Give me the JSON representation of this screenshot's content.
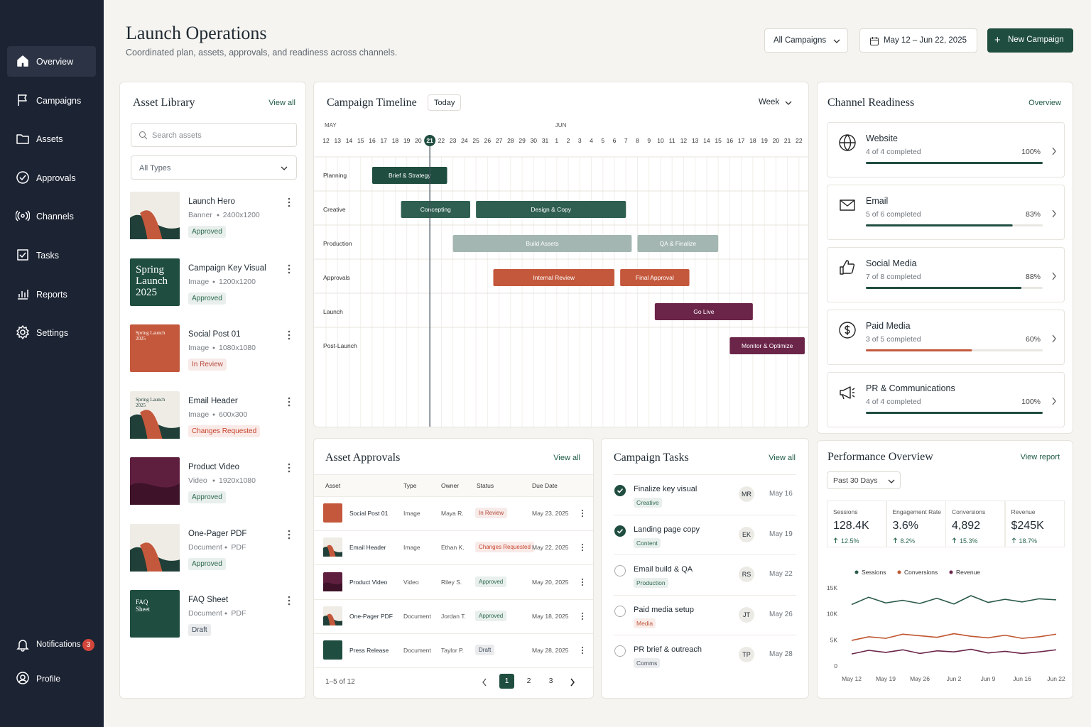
{
  "sidebar": {
    "nav": [
      "Overview",
      "Campaigns",
      "Assets",
      "Approvals",
      "Channels",
      "Tasks",
      "Reports",
      "Settings"
    ],
    "notifications": {
      "label": "Notifications",
      "count": 3
    },
    "profile": "Profile"
  },
  "header": {
    "title": "Launch Operations",
    "subtitle": "Coordinated plan, assets, approvals, and readiness across channels.",
    "filter": "All Campaigns",
    "date_range": "May 12 – Jun 22, 2025",
    "button": "New Campaign"
  },
  "asset_library": {
    "title": "Asset Library",
    "view_all": "View all",
    "search": "Search assets",
    "type_filter": "All Types",
    "items": [
      {
        "name": "Launch Hero",
        "type": "Banner",
        "size": "2400x1200",
        "status": "Approved",
        "status_color": "#2d6a4f"
      },
      {
        "name": "Campaign Key Visual",
        "type": "Image",
        "size": "1200x1200",
        "status": "Approved",
        "status_color": "#2d6a4f",
        "thumb_text": [
          "Spring",
          "Launch",
          "2025"
        ]
      },
      {
        "name": "Social Post 01",
        "type": "Image",
        "size": "1080x1080",
        "status": "In Review",
        "status_color": "#b5483a",
        "thumb_text": [
          "Spring Launch",
          "2025"
        ]
      },
      {
        "name": "Email Header",
        "type": "Image",
        "size": "600x300",
        "status": "Changes Requested",
        "status_color": "#c8442c",
        "thumb_text": [
          "Spring Launch",
          "2025"
        ]
      },
      {
        "name": "Product Video",
        "type": "Video",
        "size": "1920x1080",
        "status": "Approved",
        "status_color": "#2d6a4f"
      },
      {
        "name": "One-Pager PDF",
        "type": "Document",
        "size": "PDF",
        "status": "Approved",
        "status_color": "#2d6a4f"
      },
      {
        "name": "FAQ Sheet",
        "type": "Document",
        "size": "PDF",
        "status": "Draft",
        "status_color": "#3d4b5c",
        "thumb_text": [
          "FAQ",
          "Sheet"
        ]
      }
    ]
  },
  "timeline": {
    "title": "Campaign Timeline",
    "today_button": "Today",
    "scale": "Week",
    "months": [
      {
        "name": "MAY",
        "days": [
          12,
          13,
          14,
          15,
          16,
          17,
          18,
          19,
          20,
          21,
          22,
          23,
          24,
          25,
          26,
          27,
          28,
          29,
          30,
          31
        ]
      },
      {
        "name": "JUN",
        "days": [
          1,
          2,
          3,
          4,
          5,
          6,
          7,
          8,
          9,
          10,
          11,
          12,
          13,
          14,
          15,
          16,
          17,
          18,
          19,
          20,
          21,
          22
        ]
      }
    ],
    "today": {
      "month": "MAY",
      "day": 21
    },
    "rows": [
      {
        "name": "Planning",
        "bars": [
          {
            "label": "Brief & Strategy",
            "start": 4,
            "end": 10.5,
            "color": "#1f4d40"
          }
        ]
      },
      {
        "name": "Creative",
        "bars": [
          {
            "label": "Concepting",
            "start": 6.5,
            "end": 12.5,
            "color": "#2f5f50"
          },
          {
            "label": "Design & Copy",
            "start": 13,
            "end": 26,
            "color": "#2f5f50"
          }
        ]
      },
      {
        "name": "Production",
        "bars": [
          {
            "label": "Build Assets",
            "start": 11,
            "end": 26.5,
            "color": "#a3b6b1"
          },
          {
            "label": "QA & Finalize",
            "start": 27,
            "end": 34,
            "color": "#a3b6b1"
          }
        ]
      },
      {
        "name": "Approvals",
        "bars": [
          {
            "label": "Internal Review",
            "start": 14.5,
            "end": 25,
            "color": "#c4583c"
          },
          {
            "label": "Final Approval",
            "start": 25.5,
            "end": 31.5,
            "color": "#c4583c"
          }
        ]
      },
      {
        "name": "Launch",
        "bars": [
          {
            "label": "Go Live",
            "start": 28.5,
            "end": 37,
            "color": "#6b2549"
          }
        ]
      },
      {
        "name": "Post-Launch",
        "bars": [
          {
            "label": "Monitor & Optimize",
            "start": 35,
            "end": 41.5,
            "color": "#6b2549"
          }
        ]
      }
    ]
  },
  "channel_readiness": {
    "title": "Channel Readiness",
    "link": "Overview",
    "items": [
      {
        "name": "Website",
        "progress": "4 of 4 completed",
        "percent": 100,
        "percent_label": "100%",
        "color": "#1f4d40"
      },
      {
        "name": "Email",
        "progress": "5 of 6 completed",
        "percent": 83,
        "percent_label": "83%",
        "color": "#1f4d40"
      },
      {
        "name": "Social Media",
        "progress": "7 of 8 completed",
        "percent": 88,
        "percent_label": "88%",
        "color": "#1f4d40"
      },
      {
        "name": "Paid Media",
        "progress": "3 of 5 completed",
        "percent": 60,
        "percent_label": "60%",
        "color": "#c4583c"
      },
      {
        "name": "PR & Communications",
        "progress": "4 of 4 completed",
        "percent": 100,
        "percent_label": "100%",
        "color": "#1f4d40"
      }
    ]
  },
  "asset_approvals": {
    "title": "Asset Approvals",
    "view_all": "View all",
    "columns": [
      "Asset",
      "Type",
      "Owner",
      "Status",
      "Due Date"
    ],
    "rows": [
      {
        "asset": "Social Post 01",
        "type": "Image",
        "owner": "Maya R.",
        "status": "In Review",
        "status_color": "#b5483a",
        "due": "May 23, 2025"
      },
      {
        "asset": "Email Header",
        "type": "Image",
        "owner": "Ethan K.",
        "status": "Changes Requested",
        "status_color": "#c8442c",
        "due": "May 22, 2025"
      },
      {
        "asset": "Product Video",
        "type": "Video",
        "owner": "Riley S.",
        "status": "Approved",
        "status_color": "#2d6a4f",
        "due": "May 20, 2025"
      },
      {
        "asset": "One-Pager PDF",
        "type": "Document",
        "owner": "Jordan T.",
        "status": "Approved",
        "status_color": "#2d6a4f",
        "due": "May 18, 2025"
      },
      {
        "asset": "Press Release",
        "type": "Document",
        "owner": "Taylor P.",
        "status": "Draft",
        "status_color": "#3d4b5c",
        "due": "May 28, 2025"
      }
    ],
    "pagination": "1–5 of 12",
    "pages": [
      1,
      2,
      3
    ],
    "current_page": 1
  },
  "campaign_tasks": {
    "title": "Campaign Tasks",
    "view_all": "View all",
    "tasks": [
      {
        "name": "Finalize key visual",
        "tag": "Creative",
        "tag_color": "#2d6a4f",
        "assignee": "MR",
        "due": "May 16",
        "done": true
      },
      {
        "name": "Landing page copy",
        "tag": "Content",
        "tag_color": "#2d6a4f",
        "assignee": "EK",
        "due": "May 19",
        "done": true
      },
      {
        "name": "Email build & QA",
        "tag": "Production",
        "tag_color": "#2d6a4f",
        "assignee": "RS",
        "due": "May 22",
        "done": false
      },
      {
        "name": "Paid media setup",
        "tag": "Media",
        "tag_color": "#c4583c",
        "assignee": "JT",
        "due": "May 26",
        "done": false
      },
      {
        "name": "PR brief & outreach",
        "tag": "Comms",
        "tag_color": "#4a5663",
        "assignee": "TP",
        "due": "May 28",
        "done": false
      }
    ]
  },
  "performance": {
    "title": "Performance Overview",
    "link": "View report",
    "period": "Past 30 Days",
    "kpis": [
      {
        "label": "Sessions",
        "value": "128.4K",
        "change": "12.5%"
      },
      {
        "label": "Engagement Rate",
        "value": "3.6%",
        "change": "8.2%"
      },
      {
        "label": "Conversions",
        "value": "4,892",
        "change": "15.3%"
      },
      {
        "label": "Revenue",
        "value": "$245K",
        "change": "18.7%"
      }
    ],
    "chart_data": {
      "type": "line",
      "x": [
        "May 12",
        null,
        "May 19",
        null,
        "May 26",
        null,
        "Jun 2",
        null,
        "Jun 9",
        null,
        "Jun 16",
        null,
        "Jun 22"
      ],
      "ylim": [
        0,
        15000
      ],
      "yticks": [
        0,
        {
          "value": 5000,
          "label": "5K"
        },
        {
          "value": 10000,
          "label": "10K"
        },
        {
          "value": 15000,
          "label": "15K"
        }
      ],
      "series": [
        {
          "name": "Sessions",
          "color": "#2a5a4a",
          "values": [
            11800,
            13200,
            12100,
            12600,
            12000,
            13000,
            11900,
            13500,
            12200,
            12800,
            12300,
            12900,
            12700
          ]
        },
        {
          "name": "Conversions",
          "color": "#c0552f",
          "values": [
            4900,
            5600,
            5300,
            6100,
            5800,
            5500,
            6200,
            5700,
            5400,
            5900,
            5300,
            5600,
            6100
          ]
        },
        {
          "name": "Revenue",
          "color": "#6b2549",
          "values": [
            2300,
            3000,
            2600,
            3100,
            2400,
            2900,
            2700,
            3200,
            2500,
            2800,
            2400,
            2700,
            3100
          ]
        }
      ]
    }
  }
}
